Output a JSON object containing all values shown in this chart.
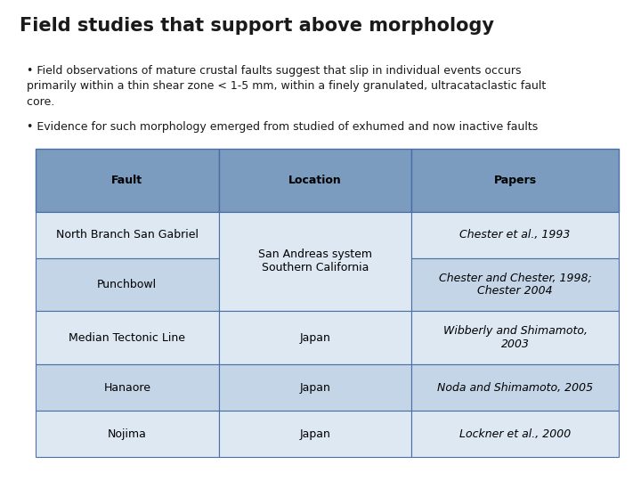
{
  "title": "Field studies that support above morphology",
  "bullet1_line1": "  • Field observations of mature crustal faults suggest that slip in individual events occurs",
  "bullet1_line2": "  primarily within a thin shear zone < 1-5 mm, within a finely granulated, ultracataclastic fault",
  "bullet1_line3": "  core.",
  "bullet2": "  • Evidence for such morphology emerged from studied of exhumed and now inactive faults",
  "header_color": "#7b9cbf",
  "row_color_light": "#c5d5e8",
  "row_color_white": "#dde8f3",
  "border_color": "#4a6fa5",
  "text_color_dark": "#1a1a1a",
  "header_labels": [
    "Fault",
    "Location",
    "Papers"
  ],
  "background_color": "#ffffff",
  "title_fontsize": 15,
  "body_fontsize": 9,
  "table_fontsize": 9
}
